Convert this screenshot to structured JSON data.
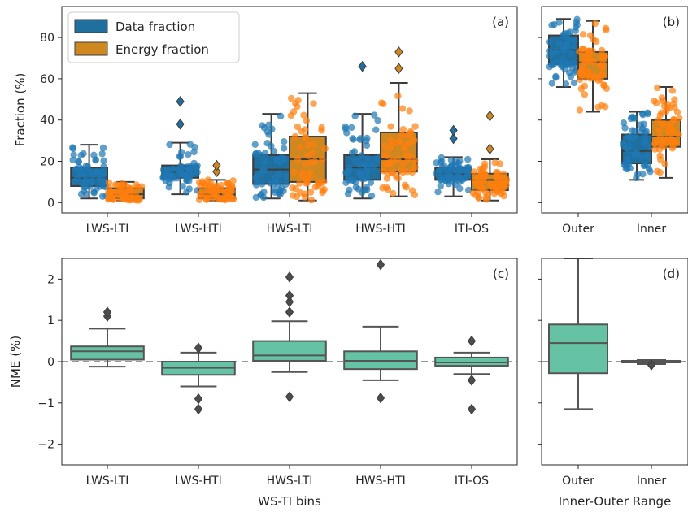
{
  "chart_data": [
    {
      "panel": "a",
      "type": "box",
      "label": "(a)",
      "ylabel": "Fraction (%)",
      "xlabel": "",
      "ylim": [
        -5,
        95
      ],
      "yticks": [
        0,
        20,
        40,
        60,
        80
      ],
      "categories": [
        "LWS-LTI",
        "LWS-HTI",
        "HWS-LTI",
        "HWS-HTI",
        "ITI-OS"
      ],
      "legend": {
        "position": "top-left",
        "entries": [
          "Data fraction",
          "Energy fraction"
        ]
      },
      "series": [
        {
          "name": "Data fraction",
          "color": "#1f77b4",
          "box_color": "#1f6f9f",
          "boxes": [
            {
              "whislo": 2,
              "q1": 8,
              "med": 12,
              "q3": 17,
              "whishi": 28,
              "fliers": []
            },
            {
              "whislo": 4,
              "q1": 12,
              "med": 15,
              "q3": 18,
              "whishi": 29,
              "fliers": [
                38,
                49
              ]
            },
            {
              "whislo": 2,
              "q1": 9,
              "med": 16,
              "q3": 23,
              "whishi": 43,
              "fliers": []
            },
            {
              "whislo": 2,
              "q1": 11,
              "med": 17,
              "q3": 23,
              "whishi": 43,
              "fliers": [
                66
              ]
            },
            {
              "whislo": 3,
              "q1": 11,
              "med": 14,
              "q3": 17,
              "whishi": 22,
              "fliers": [
                31,
                35
              ]
            }
          ]
        },
        {
          "name": "Energy fraction",
          "color": "#ff7f0e",
          "box_color": "#cf8820",
          "boxes": [
            {
              "whislo": 1,
              "q1": 2,
              "med": 4,
              "q3": 7,
              "whishi": 10,
              "fliers": []
            },
            {
              "whislo": 1,
              "q1": 2,
              "med": 4,
              "q3": 7,
              "whishi": 11,
              "fliers": [
                15,
                18
              ]
            },
            {
              "whislo": 1,
              "q1": 10,
              "med": 21,
              "q3": 32,
              "whishi": 53,
              "fliers": []
            },
            {
              "whislo": 3,
              "q1": 15,
              "med": 21,
              "q3": 34,
              "whishi": 58,
              "fliers": [
                65,
                73
              ]
            },
            {
              "whislo": 1,
              "q1": 6,
              "med": 11,
              "q3": 14,
              "whishi": 21,
              "fliers": [
                26,
                42
              ]
            }
          ]
        }
      ]
    },
    {
      "panel": "b",
      "type": "box",
      "label": "(b)",
      "ylim": [
        -5,
        95
      ],
      "categories": [
        "Outer",
        "Inner"
      ],
      "series": [
        {
          "name": "Data fraction",
          "color": "#1f77b4",
          "box_color": "#1f6f9f",
          "boxes": [
            {
              "whislo": 56,
              "q1": 67,
              "med": 74,
              "q3": 81,
              "whishi": 89,
              "fliers": []
            },
            {
              "whislo": 11,
              "q1": 19,
              "med": 25,
              "q3": 33,
              "whishi": 44,
              "fliers": []
            }
          ]
        },
        {
          "name": "Energy fraction",
          "color": "#ff7f0e",
          "box_color": "#cf8820",
          "boxes": [
            {
              "whislo": 44,
              "q1": 60,
              "med": 68,
              "q3": 73,
              "whishi": 88,
              "fliers": []
            },
            {
              "whislo": 12,
              "q1": 27,
              "med": 32,
              "q3": 40,
              "whishi": 56,
              "fliers": []
            }
          ]
        }
      ]
    },
    {
      "panel": "c",
      "type": "box",
      "label": "(c)",
      "ylabel": "NME (%)",
      "xlabel": "WS-TI bins",
      "ylim": [
        -2.5,
        2.5
      ],
      "yticks": [
        -2,
        -1,
        0,
        1,
        2
      ],
      "reference_line": 0,
      "categories": [
        "LWS-LTI",
        "LWS-HTI",
        "HWS-LTI",
        "HWS-HTI",
        "ITI-OS"
      ],
      "series": [
        {
          "name": "NME",
          "color": "#66c2a5",
          "boxes": [
            {
              "whislo": -0.12,
              "q1": 0.05,
              "med": 0.25,
              "q3": 0.37,
              "whishi": 0.8,
              "fliers": [
                1.1,
                1.2
              ]
            },
            {
              "whislo": -0.6,
              "q1": -0.32,
              "med": -0.15,
              "q3": 0.0,
              "whishi": 0.22,
              "fliers": [
                0.33,
                -0.9,
                -1.15
              ]
            },
            {
              "whislo": -0.25,
              "q1": 0.02,
              "med": 0.15,
              "q3": 0.5,
              "whishi": 0.98,
              "fliers": [
                1.2,
                1.45,
                1.6,
                2.05,
                -0.85
              ]
            },
            {
              "whislo": -0.45,
              "q1": -0.18,
              "med": 0.02,
              "q3": 0.25,
              "whishi": 0.85,
              "fliers": [
                2.35,
                -0.88
              ]
            },
            {
              "whislo": -0.3,
              "q1": -0.1,
              "med": -0.02,
              "q3": 0.1,
              "whishi": 0.22,
              "fliers": [
                0.5,
                -0.45,
                -1.15
              ]
            }
          ]
        }
      ]
    },
    {
      "panel": "d",
      "type": "box",
      "label": "(d)",
      "xlabel": "Inner-Outer Range",
      "ylim": [
        -2.5,
        2.5
      ],
      "reference_line": 0,
      "categories": [
        "Outer",
        "Inner"
      ],
      "series": [
        {
          "name": "NME",
          "color": "#66c2a5",
          "boxes": [
            {
              "whislo": -1.15,
              "q1": -0.28,
              "med": 0.45,
              "q3": 0.9,
              "whishi": 2.5,
              "fliers": []
            },
            {
              "whislo": -0.06,
              "q1": -0.02,
              "med": 0.0,
              "q3": 0.02,
              "whishi": 0.04,
              "fliers": [
                -0.08
              ]
            }
          ]
        }
      ]
    }
  ]
}
